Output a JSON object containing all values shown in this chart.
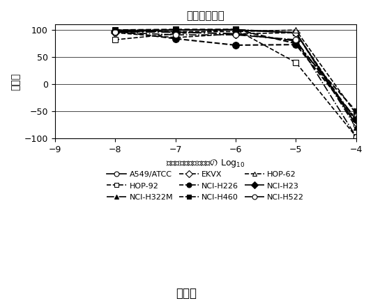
{
  "title": "非小細胞肺癌",
  "xlabel": "サンプル濃度（モル）の Log$_{10}$",
  "ylabel": "増殖率",
  "xlim": [
    -9,
    -4
  ],
  "ylim": [
    -100,
    110
  ],
  "xticks": [
    -9,
    -8,
    -7,
    -6,
    -5,
    -4
  ],
  "yticks": [
    -100,
    -50,
    0,
    50,
    100
  ],
  "caption": "図４Ｂ",
  "series": [
    {
      "name": "A549/ATCC",
      "x": [
        -8,
        -7,
        -6,
        -5,
        -4
      ],
      "y": [
        97,
        100,
        100,
        95,
        -75
      ],
      "linestyle": "-",
      "marker": "o",
      "fillstyle": "none",
      "color": "black",
      "linewidth": 1.5,
      "markersize": 6
    },
    {
      "name": "HOP-92",
      "x": [
        -8,
        -7,
        -6,
        -5,
        -4
      ],
      "y": [
        82,
        93,
        101,
        40,
        -97
      ],
      "linestyle": "--",
      "marker": "s",
      "fillstyle": "none",
      "color": "black",
      "linewidth": 1.2,
      "markersize": 6
    },
    {
      "name": "NCI-H322M",
      "x": [
        -8,
        -7,
        -6,
        -5,
        -4
      ],
      "y": [
        100,
        100,
        101,
        95,
        -80
      ],
      "linestyle": "-.",
      "marker": "^",
      "fillstyle": "full",
      "color": "black",
      "linewidth": 1.2,
      "markersize": 6
    },
    {
      "name": "EKVX",
      "x": [
        -8,
        -7,
        -6,
        -5,
        -4
      ],
      "y": [
        95,
        86,
        93,
        95,
        -70
      ],
      "linestyle": "--",
      "marker": "D",
      "fillstyle": "none",
      "color": "black",
      "linewidth": 1.2,
      "markersize": 6
    },
    {
      "name": "NCI-H226",
      "x": [
        -8,
        -7,
        -6,
        -5,
        -4
      ],
      "y": [
        98,
        84,
        72,
        73,
        -65
      ],
      "linestyle": "--",
      "marker": "o",
      "fillstyle": "full",
      "color": "black",
      "linewidth": 1.5,
      "markersize": 7
    },
    {
      "name": "NCI-H460",
      "x": [
        -8,
        -7,
        -6,
        -5,
        -4
      ],
      "y": [
        100,
        101,
        101,
        75,
        -50
      ],
      "linestyle": "--",
      "marker": "s",
      "fillstyle": "full",
      "color": "black",
      "linewidth": 1.5,
      "markersize": 6
    },
    {
      "name": "HOP-62",
      "x": [
        -8,
        -7,
        -6,
        -5,
        -4
      ],
      "y": [
        98,
        97,
        97,
        100,
        -55
      ],
      "linestyle": "--",
      "marker": "^",
      "fillstyle": "none",
      "color": "black",
      "linewidth": 1.2,
      "markersize": 6
    },
    {
      "name": "NCI-H23",
      "x": [
        -8,
        -7,
        -6,
        -5,
        -4
      ],
      "y": [
        97,
        96,
        93,
        80,
        -65
      ],
      "linestyle": "-.",
      "marker": "D",
      "fillstyle": "full",
      "color": "black",
      "linewidth": 1.5,
      "markersize": 6
    },
    {
      "name": "NCI-H522",
      "x": [
        -8,
        -7,
        -6,
        -5,
        -4
      ],
      "y": [
        96,
        91,
        91,
        82,
        -97
      ],
      "linestyle": "-.",
      "marker": "o",
      "fillstyle": "none",
      "color": "black",
      "linewidth": 1.2,
      "markersize": 6
    }
  ],
  "legend_entries": [
    {
      "name": "A549/ATCC",
      "linestyle": "-",
      "marker": "o",
      "fillstyle": "none",
      "col": 0,
      "row": 0
    },
    {
      "name": "HOP-92",
      "linestyle": "--",
      "marker": "s",
      "fillstyle": "none",
      "col": 0,
      "row": 1
    },
    {
      "name": "NCI-H322M",
      "linestyle": "-.",
      "marker": "^",
      "fillstyle": "full",
      "col": 0,
      "row": 2
    },
    {
      "name": "EKVX",
      "linestyle": "--",
      "marker": "D",
      "fillstyle": "none",
      "col": 1,
      "row": 0
    },
    {
      "name": "NCI-H226",
      "linestyle": "--",
      "marker": "o",
      "fillstyle": "full",
      "col": 1,
      "row": 1
    },
    {
      "name": "NCI-H460",
      "linestyle": "--",
      "marker": "s",
      "fillstyle": "full",
      "col": 1,
      "row": 2
    },
    {
      "name": "HOP-62",
      "linestyle": "--",
      "marker": "^",
      "fillstyle": "none",
      "col": 2,
      "row": 0
    },
    {
      "name": "NCI-H23",
      "linestyle": "-.",
      "marker": "D",
      "fillstyle": "full",
      "col": 2,
      "row": 1
    },
    {
      "name": "NCI-H522",
      "linestyle": "-.",
      "marker": "o",
      "fillstyle": "none",
      "col": 2,
      "row": 2
    }
  ]
}
